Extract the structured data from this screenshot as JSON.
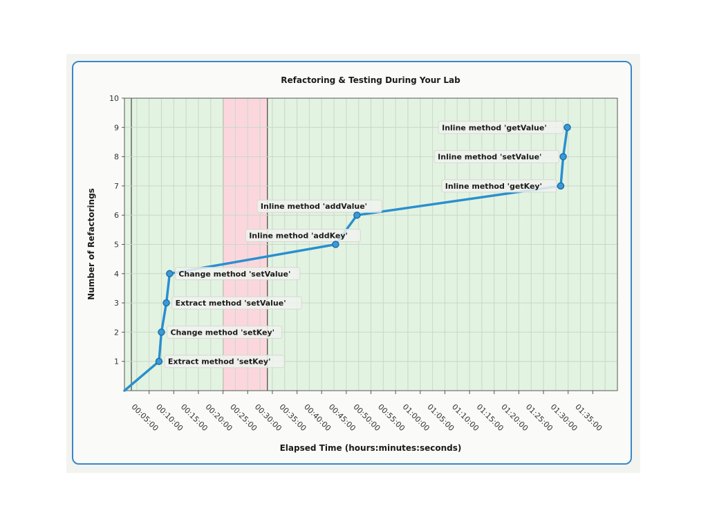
{
  "chart_data": {
    "type": "line",
    "title": "Refactoring & Testing During Your Lab",
    "xlabel": "Elapsed Time (hours:minutes:seconds)",
    "ylabel": "Number of Refactorings",
    "x_ticks": [
      "00:05:00",
      "00:10:00",
      "00:15:00",
      "00:20:00",
      "00:25:00",
      "00:30:00",
      "00:35:00",
      "00:40:00",
      "00:45:00",
      "00:50:00",
      "00:55:00",
      "01:00:00",
      "01:05:00",
      "01:10:00",
      "01:15:00",
      "01:20:00",
      "01:25:00",
      "01:30:00",
      "01:35:00"
    ],
    "y_ticks": [
      1,
      2,
      3,
      4,
      5,
      6,
      7,
      8,
      9,
      10
    ],
    "xlim": [
      "00:00:00",
      "01:40:00"
    ],
    "ylim": [
      0,
      10
    ],
    "grid": true,
    "series": [
      {
        "x": [
          "00:00:00",
          "00:07:00",
          "00:07:30",
          "00:08:30",
          "00:09:10",
          "00:42:50",
          "00:47:10",
          "01:28:30",
          "01:29:00",
          "01:29:50"
        ],
        "y": [
          0,
          1,
          2,
          3,
          4,
          5,
          6,
          7,
          8,
          9
        ],
        "color": "#2a8fd0"
      }
    ],
    "annotations": [
      {
        "x": "00:07:00",
        "y": 1,
        "text": "Extract method 'setKey'",
        "side": "right"
      },
      {
        "x": "00:07:30",
        "y": 2,
        "text": "Change method 'setKey'",
        "side": "right"
      },
      {
        "x": "00:08:30",
        "y": 3,
        "text": "Extract method 'setValue'",
        "side": "right"
      },
      {
        "x": "00:09:10",
        "y": 4,
        "text": "Change method 'setValue'",
        "side": "right"
      },
      {
        "x": "00:42:50",
        "y": 5,
        "text": "Inline method 'addKey'",
        "side": "left-above"
      },
      {
        "x": "00:47:10",
        "y": 6,
        "text": "Inline method 'addValue'",
        "side": "left-above"
      },
      {
        "x": "01:28:30",
        "y": 7,
        "text": "Inline method 'getKey'",
        "side": "left"
      },
      {
        "x": "01:29:00",
        "y": 8,
        "text": "Inline method 'setValue'",
        "side": "left"
      },
      {
        "x": "01:29:50",
        "y": 9,
        "text": "Inline method 'getValue'",
        "side": "left"
      }
    ],
    "bands": [
      {
        "from": "00:00:00",
        "to": "00:20:00",
        "status": "green",
        "color": "#e3f3e1"
      },
      {
        "from": "00:20:00",
        "to": "00:29:00",
        "status": "red",
        "color": "#fbd7dd"
      },
      {
        "from": "00:29:00",
        "to": "01:40:00",
        "status": "green",
        "color": "#e3f3e1"
      }
    ]
  }
}
